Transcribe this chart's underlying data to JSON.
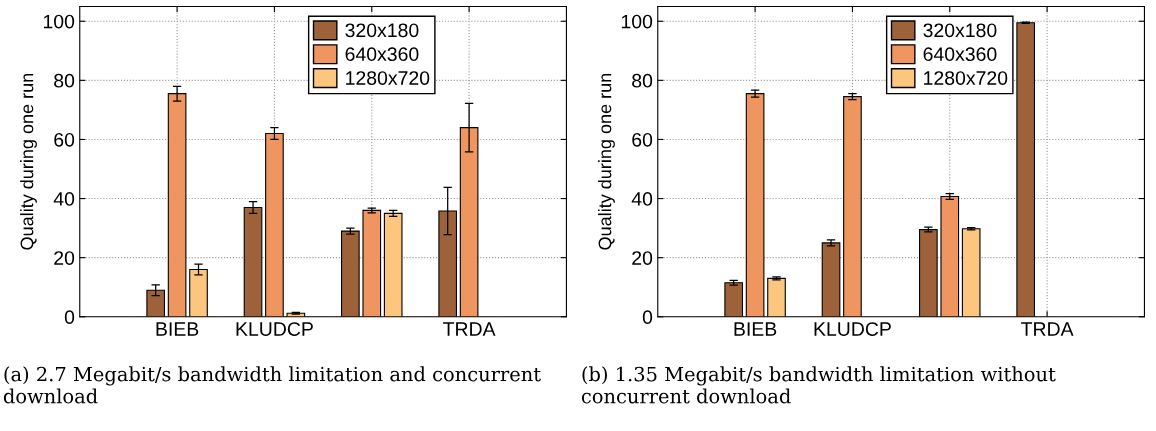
{
  "chart_data": [
    {
      "type": "bar",
      "ylabel": "Quality during one run",
      "categories": [
        "BIEB",
        "KLUDCP",
        null,
        "TRDA"
      ],
      "ylim": [
        0,
        105
      ],
      "yticks": [
        0,
        20,
        40,
        60,
        80,
        100
      ],
      "grid": true,
      "legend": "top",
      "annotations": [
        "(a) 2.7 Megabit/s bandwidth limitation and concurrent download"
      ],
      "series": [
        {
          "name": "320x180",
          "color": "#9e623a",
          "values": [
            9,
            37,
            29,
            35.8
          ],
          "errors": [
            1.8,
            2,
            1,
            8
          ]
        },
        {
          "name": "640x360",
          "color": "#ee9560",
          "values": [
            75.5,
            62,
            36,
            64
          ],
          "errors": [
            2.5,
            2,
            0.8,
            8.2
          ]
        },
        {
          "name": "1280x720",
          "color": "#fdc67e",
          "values": [
            16,
            1.2,
            35,
            null
          ],
          "errors": [
            1.8,
            0.3,
            1,
            null
          ]
        }
      ]
    },
    {
      "type": "bar",
      "ylabel": "Quality during one run",
      "categories": [
        "BIEB",
        "KLUDCP",
        null,
        "TRDA"
      ],
      "ylim": [
        0,
        105
      ],
      "yticks": [
        0,
        20,
        40,
        60,
        80,
        100
      ],
      "grid": true,
      "legend": "top",
      "annotations": [
        "(b) 1.35 Megabit/s bandwidth limitation without concurrent download"
      ],
      "series": [
        {
          "name": "320x180",
          "color": "#9e623a",
          "values": [
            11.5,
            25,
            29.5,
            99.5
          ],
          "errors": [
            0.8,
            1,
            0.8,
            0.2
          ]
        },
        {
          "name": "640x360",
          "color": "#ee9560",
          "values": [
            75.5,
            74.5,
            40.7,
            null
          ],
          "errors": [
            1.2,
            1,
            1,
            null
          ]
        },
        {
          "name": "1280x720",
          "color": "#fdc67e",
          "values": [
            13,
            null,
            29.8,
            null
          ],
          "errors": [
            0.5,
            null,
            0.4,
            null
          ]
        }
      ]
    }
  ]
}
